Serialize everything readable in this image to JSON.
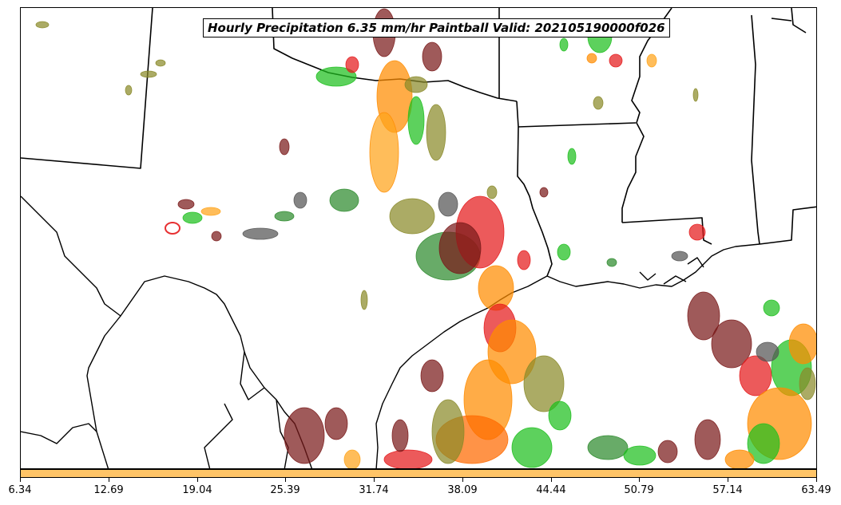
{
  "map": {
    "title": "Hourly Precipitation 6.35 mm/hr Paintball Valid: 202105190000f026",
    "colors": {
      "member_colors": [
        "#e41a1c",
        "#1fbf1f",
        "#ff8c00",
        "#7a1a1a",
        "#8a8a2a",
        "#2e8b2e",
        "#555555",
        "#ffa31a"
      ],
      "borders": "#000000",
      "colorbar_fill": "#ffc467"
    }
  },
  "colorbar": {
    "ticks": [
      "6.34",
      "12.69",
      "19.04",
      "25.39",
      "31.74",
      "38.09",
      "44.44",
      "50.79",
      "57.14",
      "63.49"
    ]
  }
}
